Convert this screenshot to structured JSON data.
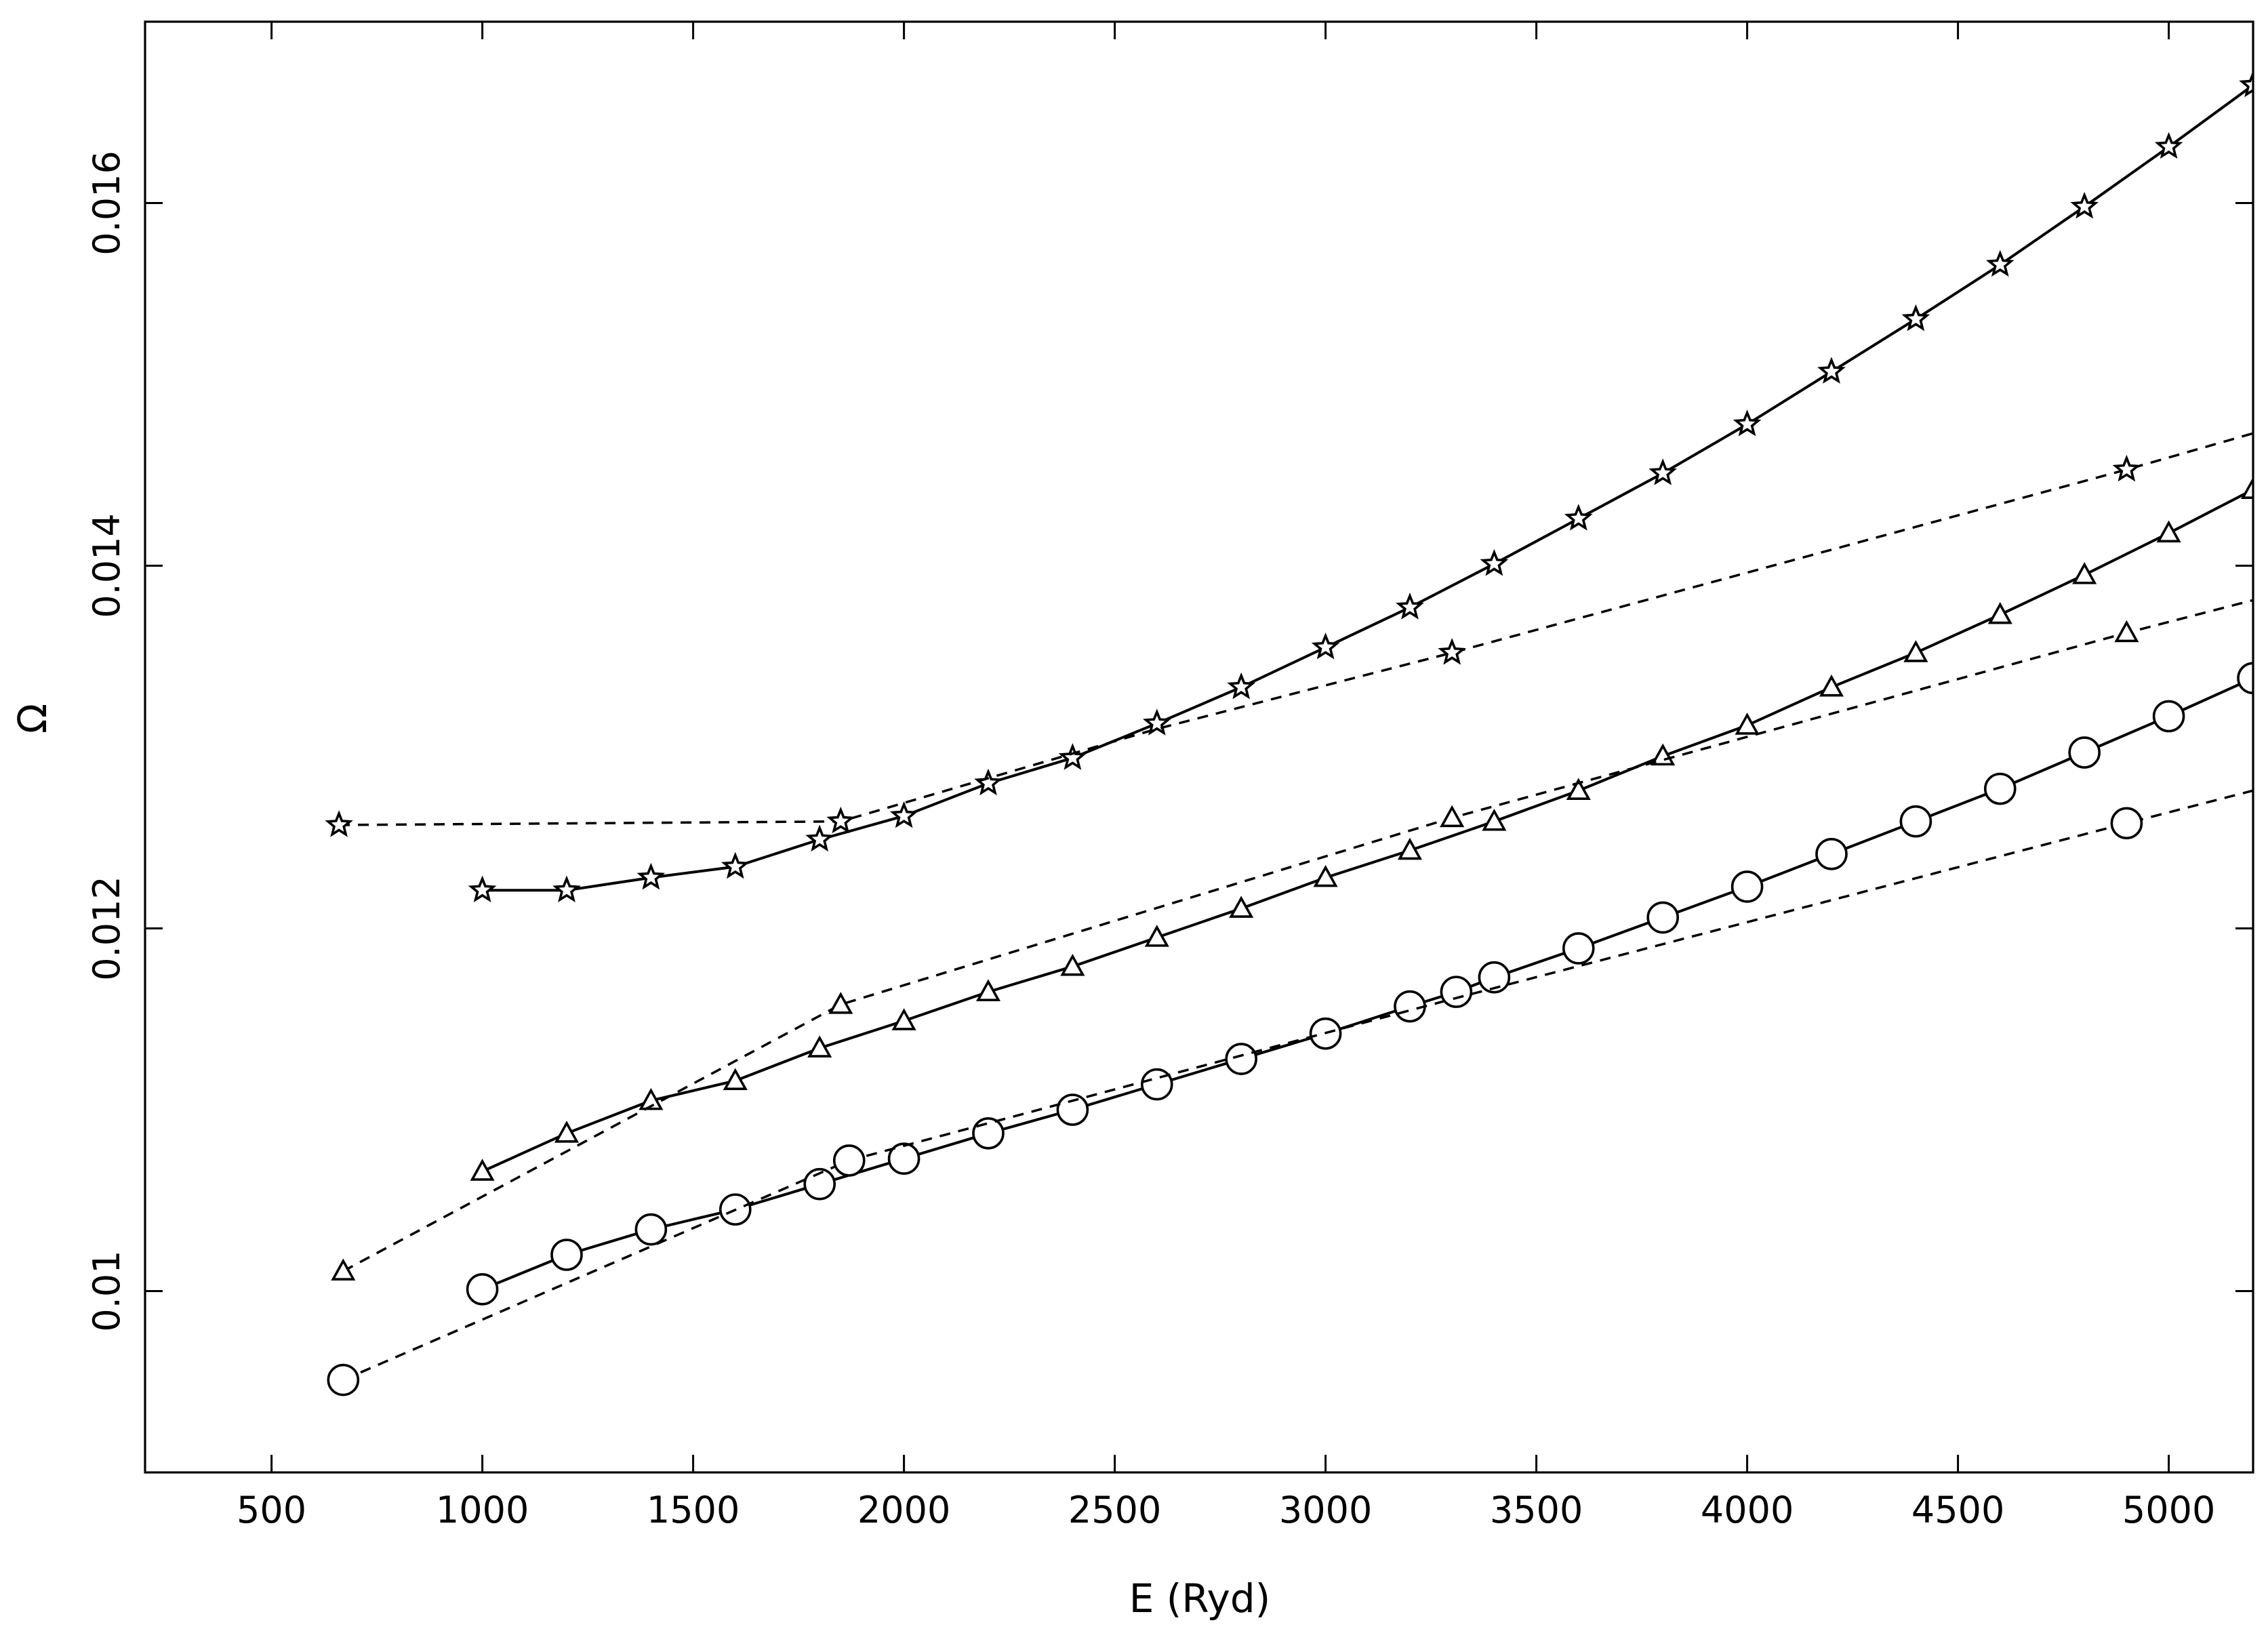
{
  "chart_data": {
    "type": "line",
    "xlabel": "E (Ryd)",
    "ylabel": "Ω",
    "xlim": [
      200,
      5200
    ],
    "ylim": [
      0.009,
      0.017
    ],
    "xticks": [
      500,
      1000,
      1500,
      2000,
      2500,
      3000,
      3500,
      4000,
      4500,
      5000
    ],
    "yticks": [
      0.01,
      0.012,
      0.014,
      0.016
    ],
    "xtick_labels": [
      "500",
      "1000",
      "1500",
      "2000",
      "2500",
      "3000",
      "3500",
      "4000",
      "4500",
      "5000"
    ],
    "ytick_labels": [
      "0.01",
      "0.012",
      "0.014",
      "0.016"
    ],
    "grid": false,
    "series": [
      {
        "marker": "star",
        "linestyle": "solid",
        "x": [
          1000,
          1200,
          1400,
          1600,
          1800,
          2000,
          2200,
          2400,
          2600,
          2800,
          3000,
          3200,
          3400,
          3600,
          3800,
          4000,
          4200,
          4400,
          4600,
          4800,
          5000,
          5200
        ],
        "y": [
          0.01221,
          0.01221,
          0.01228,
          0.01234,
          0.01249,
          0.01262,
          0.0128,
          0.01294,
          0.01313,
          0.01333,
          0.01355,
          0.01377,
          0.01401,
          0.01426,
          0.01451,
          0.01478,
          0.01507,
          0.01536,
          0.01566,
          0.01598,
          0.01631,
          0.01665
        ]
      },
      {
        "marker": "star",
        "linestyle": "dashed",
        "x": [
          660,
          1850,
          2600,
          3300,
          4900,
          5200
        ],
        "y": [
          0.01257,
          0.01259,
          0.0131,
          0.01352,
          0.01453,
          0.01473
        ],
        "marker_x": [
          660,
          1850,
          3300,
          4900
        ],
        "marker_y": [
          0.01257,
          0.01259,
          0.01352,
          0.01453
        ]
      },
      {
        "marker": "triangle",
        "linestyle": "solid",
        "x": [
          1000,
          1200,
          1400,
          1600,
          1800,
          2000,
          2200,
          2400,
          2600,
          2800,
          3000,
          3200,
          3400,
          3600,
          3800,
          4000,
          4200,
          4400,
          4600,
          4800,
          5000,
          5200
        ],
        "y": [
          0.01066,
          0.01087,
          0.01105,
          0.01116,
          0.01134,
          0.01149,
          0.01165,
          0.01179,
          0.01195,
          0.01211,
          0.01228,
          0.01243,
          0.01259,
          0.01276,
          0.01295,
          0.01312,
          0.01333,
          0.01352,
          0.01373,
          0.01395,
          0.01418,
          0.01442
        ]
      },
      {
        "marker": "triangle",
        "linestyle": "dashed",
        "x": [
          670,
          1850,
          3300,
          4900,
          5200
        ],
        "y": [
          0.01011,
          0.01158,
          0.01261,
          0.01363,
          0.01381
        ],
        "marker_x": [
          670,
          1850,
          3300,
          4900
        ],
        "marker_y": [
          0.01011,
          0.01158,
          0.01261,
          0.01363
        ]
      },
      {
        "marker": "circle",
        "linestyle": "solid",
        "x": [
          1000,
          1200,
          1400,
          1600,
          1800,
          2000,
          2200,
          2400,
          2600,
          2800,
          3000,
          3200,
          3310,
          3400,
          3600,
          3800,
          4000,
          4200,
          4400,
          4600,
          4800,
          5000,
          5200
        ],
        "y": [
          0.01001,
          0.0102,
          0.01034,
          0.01045,
          0.01059,
          0.01073,
          0.01087,
          0.011,
          0.01114,
          0.01128,
          0.01142,
          0.01157,
          0.01165,
          0.01173,
          0.01189,
          0.01206,
          0.01223,
          0.01241,
          0.01259,
          0.01277,
          0.01297,
          0.01317,
          0.01338
        ]
      },
      {
        "marker": "circle",
        "linestyle": "dashed",
        "x": [
          670,
          1870,
          3300,
          4900,
          5200
        ],
        "y": [
          0.00951,
          0.01072,
          0.01161,
          0.01258,
          0.01276
        ],
        "marker_x": [
          670,
          1870,
          4900
        ],
        "marker_y": [
          0.00951,
          0.01072,
          0.01258
        ]
      }
    ]
  }
}
